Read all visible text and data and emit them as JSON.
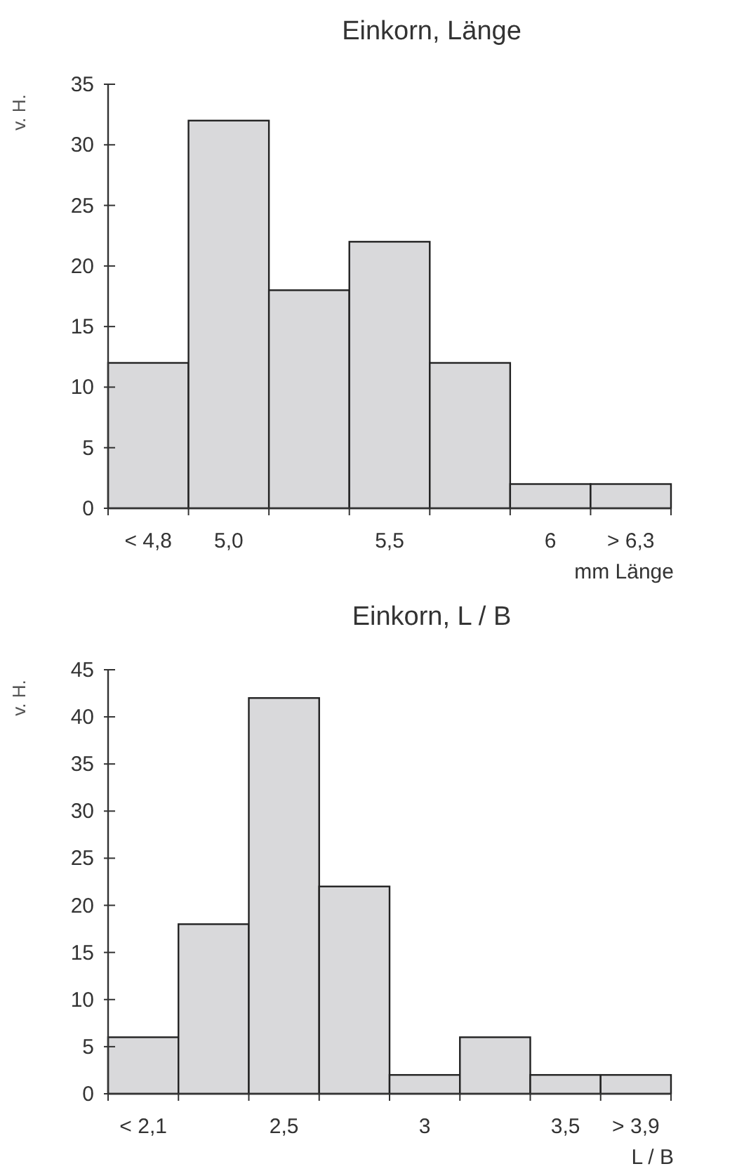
{
  "chart_data": [
    {
      "type": "bar",
      "title": "Einkorn, Länge",
      "ylabel": "v. H.",
      "xlabel": "mm Länge",
      "categories": [
        "< 4,8",
        "5,0",
        null,
        "5,5",
        null,
        "6",
        "> 6,3"
      ],
      "values": [
        12,
        32,
        18,
        22,
        12,
        2,
        2
      ],
      "color": "#d9d9db",
      "ylim": [
        0,
        35
      ],
      "yticks": [
        0,
        5,
        10,
        15,
        20,
        25,
        30,
        35
      ],
      "grid": false
    },
    {
      "type": "bar",
      "title": "Einkorn, L / B",
      "ylabel": "v. H.",
      "xlabel": "L / B",
      "categories": [
        "< 2,1",
        null,
        "2,5",
        null,
        "3",
        null,
        "3,5",
        "> 3,9"
      ],
      "values": [
        6,
        18,
        42,
        22,
        2,
        6,
        2,
        2
      ],
      "color": "#d9d9db",
      "ylim": [
        0,
        45
      ],
      "yticks": [
        0,
        5,
        10,
        15,
        20,
        25,
        30,
        35,
        40,
        45
      ],
      "grid": false
    }
  ]
}
